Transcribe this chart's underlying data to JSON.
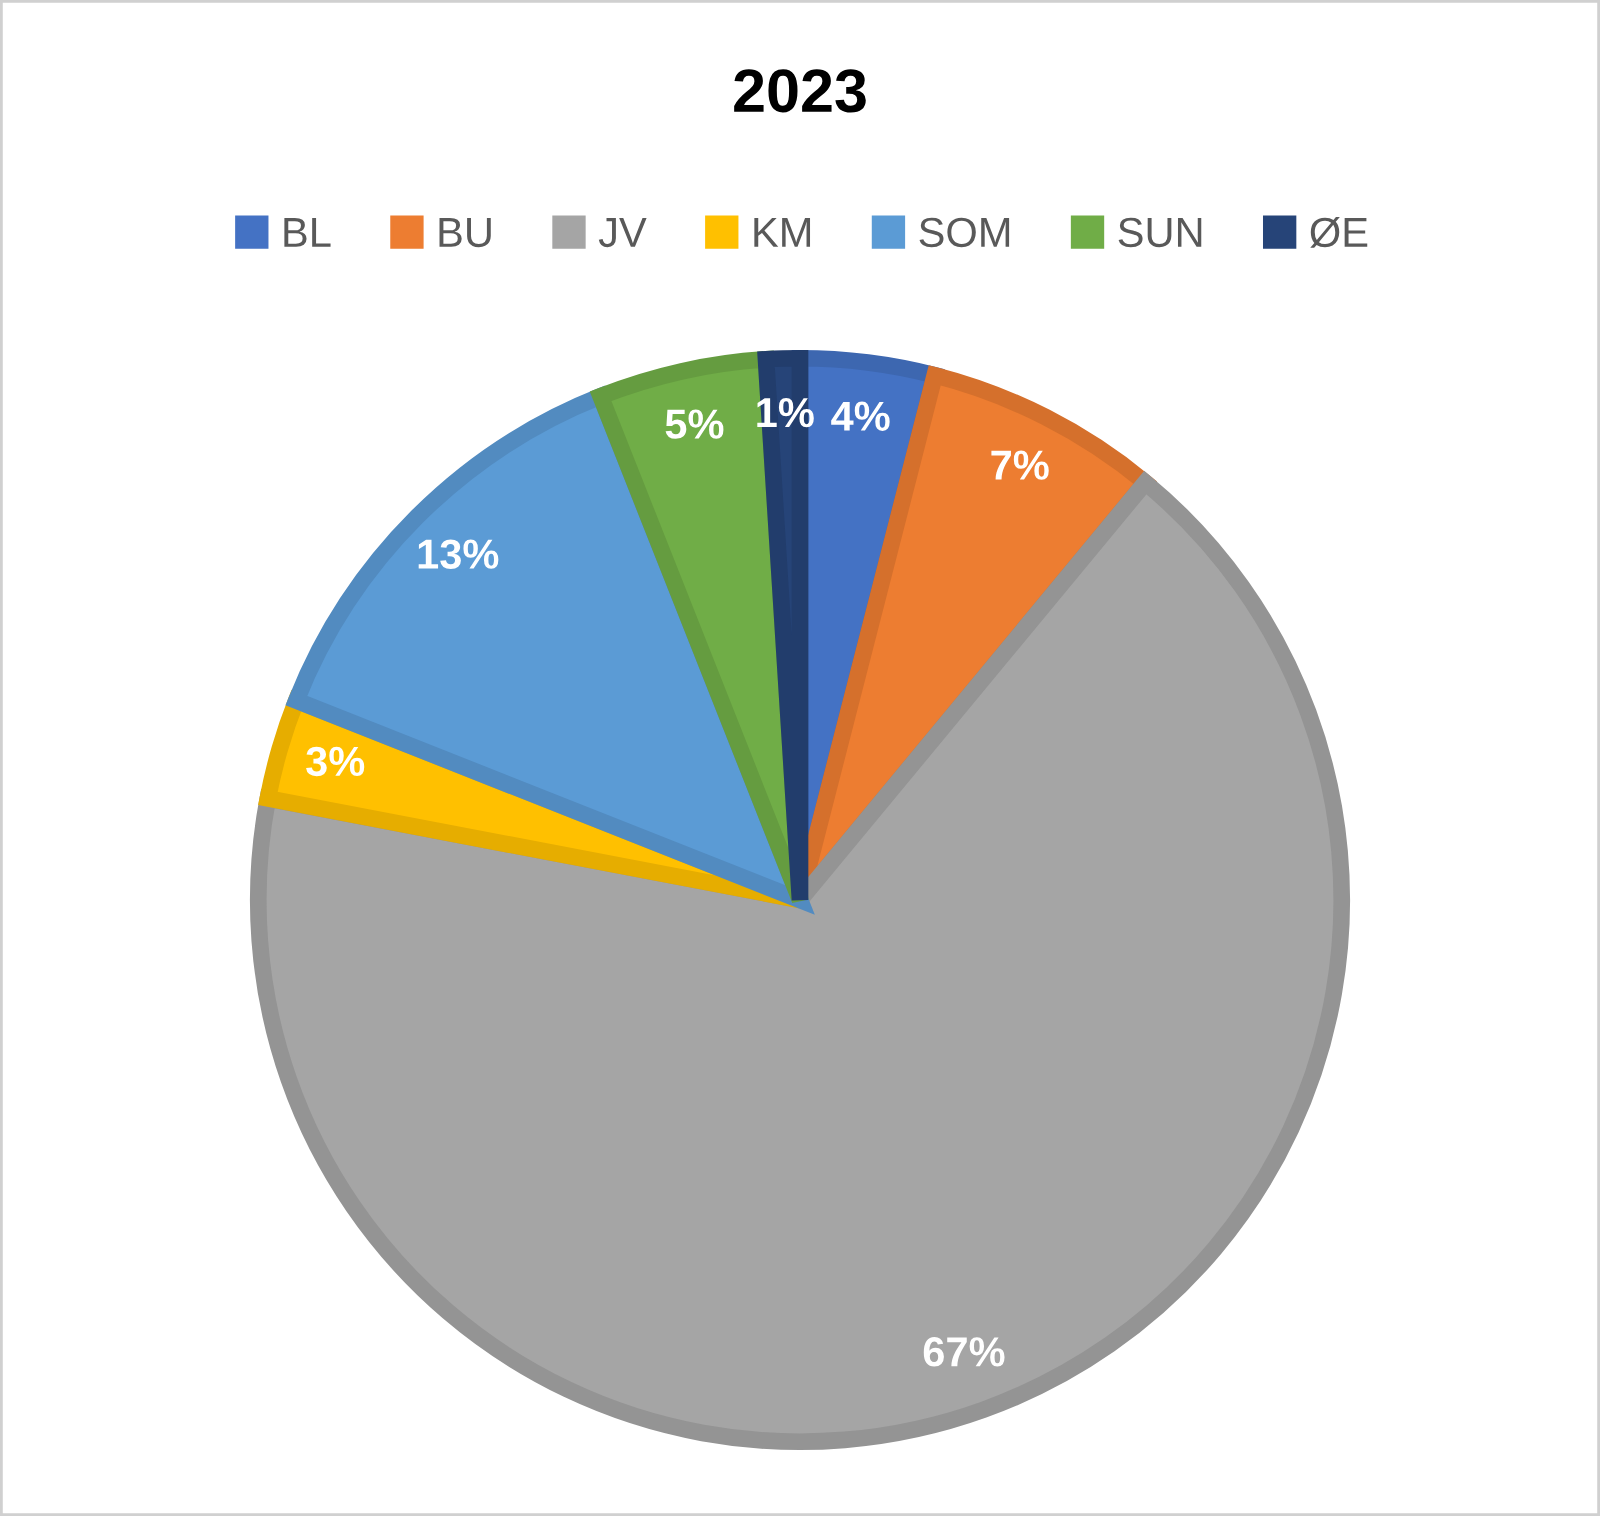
{
  "chart_data": {
    "type": "pie",
    "title": "2023",
    "categories": [
      "BL",
      "BU",
      "JV",
      "KM",
      "SOM",
      "SUN",
      "ØE"
    ],
    "values": [
      4,
      7,
      67,
      3,
      13,
      5,
      1
    ],
    "value_labels": [
      "4%",
      "7%",
      "67%",
      "3%",
      "13%",
      "5%",
      "1%"
    ],
    "colors": [
      "#4472c4",
      "#ed7d31",
      "#a5a5a5",
      "#ffc000",
      "#5b9bd5",
      "#70ad47",
      "#264478"
    ],
    "legend": "top"
  }
}
